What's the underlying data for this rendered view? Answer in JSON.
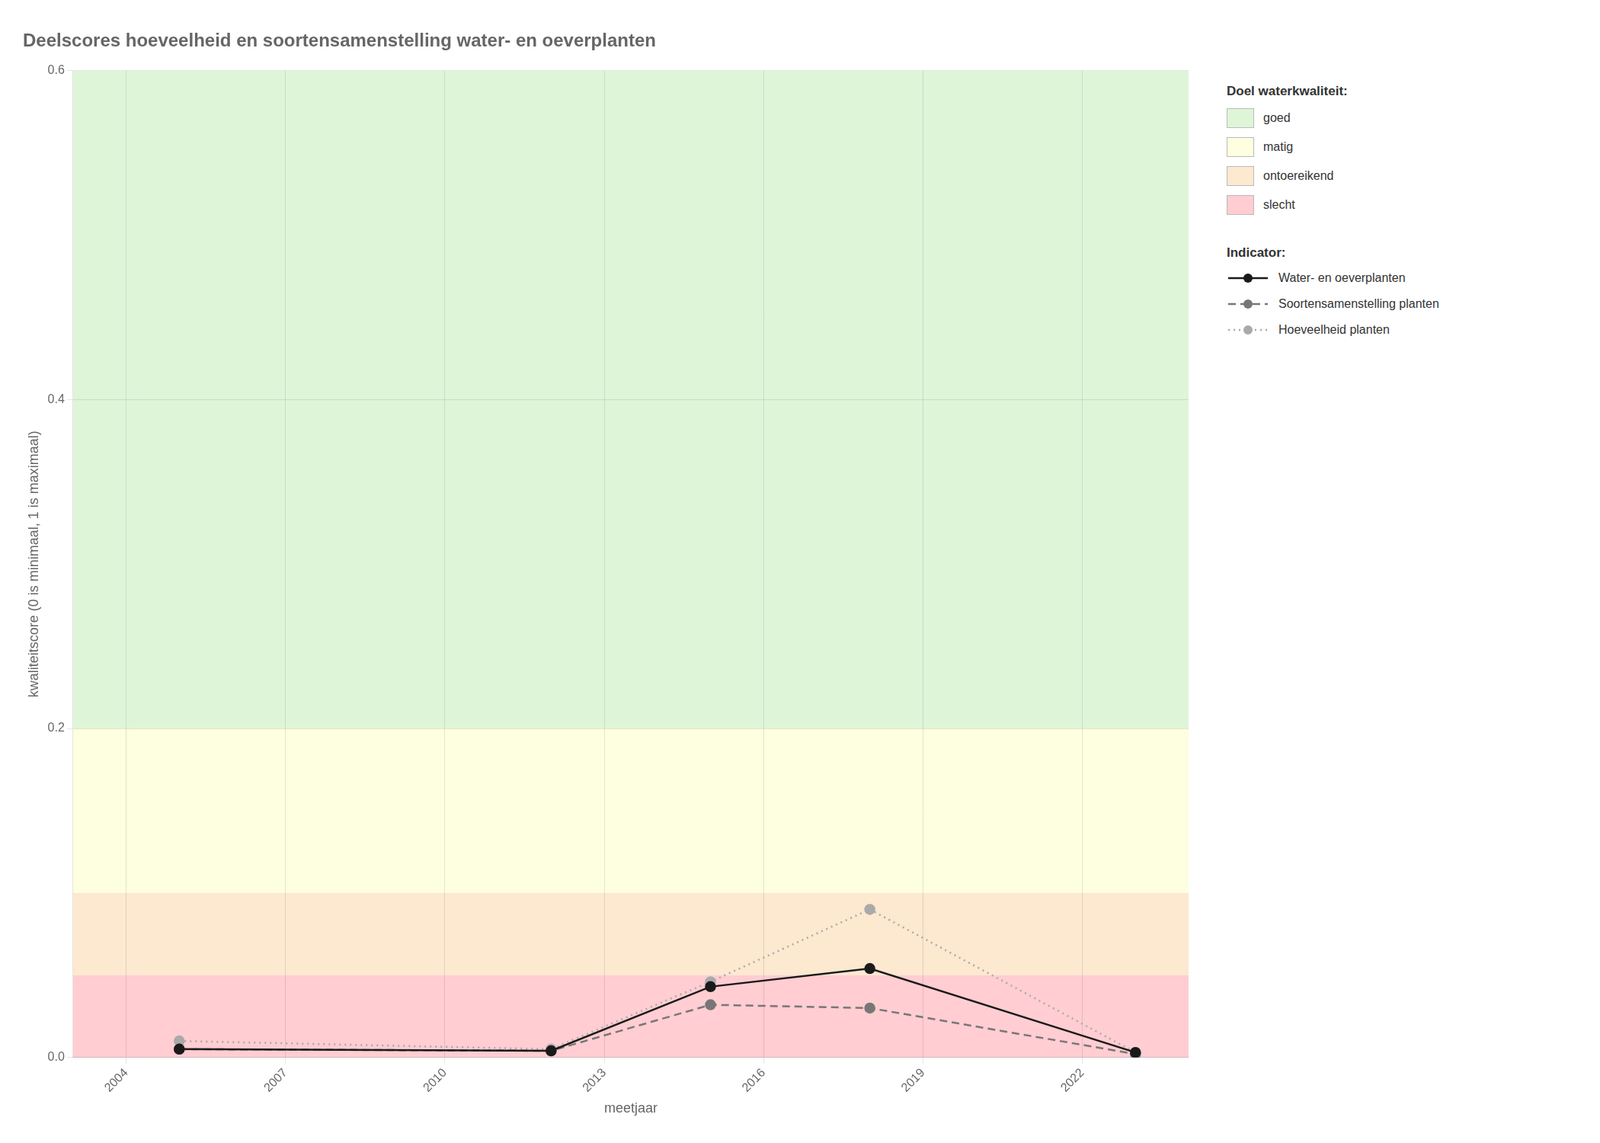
{
  "chart_data": {
    "type": "line",
    "title": "Deelscores hoeveelheid en soortensamenstelling water- en oeverplanten",
    "xlabel": "meetjaar",
    "ylabel": "kwaliteitscore (0 is minimaal, 1 is maximaal)",
    "xlim": [
      2003.0,
      2024.0
    ],
    "ylim": [
      0.0,
      0.6
    ],
    "xticks": [
      2004,
      2007,
      2010,
      2013,
      2016,
      2019,
      2022
    ],
    "yticks": [
      {
        "value": 0.0,
        "label": "0.0"
      },
      0.2,
      0.4,
      0.6
    ],
    "grid": true,
    "legend": "right",
    "band_legend_title": "Doel waterkwaliteit:",
    "bands": [
      {
        "name": "goed",
        "ymin": 0.2,
        "ymax": 0.6,
        "color": "#dff5d8"
      },
      {
        "name": "matig",
        "ymin": 0.1,
        "ymax": 0.2,
        "color": "#fefee0"
      },
      {
        "name": "ontoereikend",
        "ymin": 0.05,
        "ymax": 0.1,
        "color": "#fde8d0"
      },
      {
        "name": "slecht",
        "ymin": 0.0,
        "ymax": 0.05,
        "color": "#ffcdd2"
      }
    ],
    "legend_title": "Indicator:",
    "x": [
      2005,
      2012,
      2015,
      2018,
      2023
    ],
    "series": [
      {
        "name": "Water- en oeverplanten",
        "color": "#1a1a1a",
        "line_style": "solid",
        "marker": "circle",
        "values": [
          0.005,
          0.004,
          0.043,
          0.054,
          0.003
        ]
      },
      {
        "name": "Soortensamenstelling planten",
        "color": "#777777",
        "line_style": "dashed",
        "marker": "circle",
        "values": [
          0.005,
          0.004,
          0.032,
          0.03,
          0.002
        ]
      },
      {
        "name": "Hoeveelheid planten",
        "color": "#aaaaaa",
        "line_style": "dotted",
        "marker": "circle",
        "values": [
          0.01,
          0.005,
          0.046,
          0.09,
          0.003
        ]
      }
    ]
  }
}
